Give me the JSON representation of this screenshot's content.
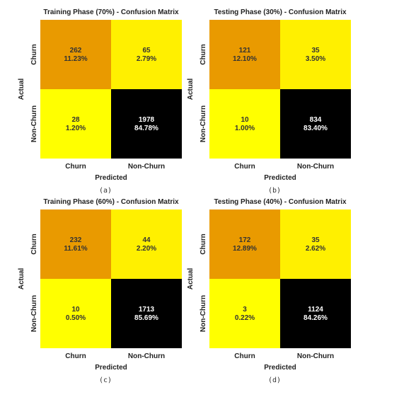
{
  "colors": {
    "high": "#000000",
    "mid": "#e99a00",
    "low": "#fff000",
    "lowest": "#ffff00",
    "text_dark": "#333333",
    "text_light": "#ffffff"
  },
  "chart_data": [
    {
      "type": "heatmap",
      "title": "Training Phase (70%) - Confusion Matrix",
      "xlabel": "Predicted",
      "ylabel": "Actual",
      "x_categories": [
        "Churn",
        "Non-Churn"
      ],
      "y_categories": [
        "Churn",
        "Non-Churn"
      ],
      "counts": [
        [
          262,
          65
        ],
        [
          28,
          1978
        ]
      ],
      "percents": [
        [
          "11.23%",
          "2.79%"
        ],
        [
          "1.20%",
          "84.78%"
        ]
      ],
      "caption": "(a)"
    },
    {
      "type": "heatmap",
      "title": "Testing Phase (30%) - Confusion Matrix",
      "xlabel": "Predicted",
      "ylabel": "Actual",
      "x_categories": [
        "Churn",
        "Non-Churn"
      ],
      "y_categories": [
        "Churn",
        "Non-Churn"
      ],
      "counts": [
        [
          121,
          35
        ],
        [
          10,
          834
        ]
      ],
      "percents": [
        [
          "12.10%",
          "3.50%"
        ],
        [
          "1.00%",
          "83.40%"
        ]
      ],
      "caption": "(b)"
    },
    {
      "type": "heatmap",
      "title": "Training Phase (60%) - Confusion Matrix",
      "xlabel": "Predicted",
      "ylabel": "Actual",
      "x_categories": [
        "Churn",
        "Non-Churn"
      ],
      "y_categories": [
        "Churn",
        "Non-Churn"
      ],
      "counts": [
        [
          232,
          44
        ],
        [
          10,
          1713
        ]
      ],
      "percents": [
        [
          "11.61%",
          "2.20%"
        ],
        [
          "0.50%",
          "85.69%"
        ]
      ],
      "caption": "(c)"
    },
    {
      "type": "heatmap",
      "title": "Testing Phase (40%) - Confusion Matrix",
      "xlabel": "Predicted",
      "ylabel": "Actual",
      "x_categories": [
        "Churn",
        "Non-Churn"
      ],
      "y_categories": [
        "Churn",
        "Non-Churn"
      ],
      "counts": [
        [
          172,
          35
        ],
        [
          3,
          1124
        ]
      ],
      "percents": [
        [
          "12.89%",
          "2.62%"
        ],
        [
          "0.22%",
          "84.26%"
        ]
      ],
      "caption": "(d)"
    }
  ]
}
